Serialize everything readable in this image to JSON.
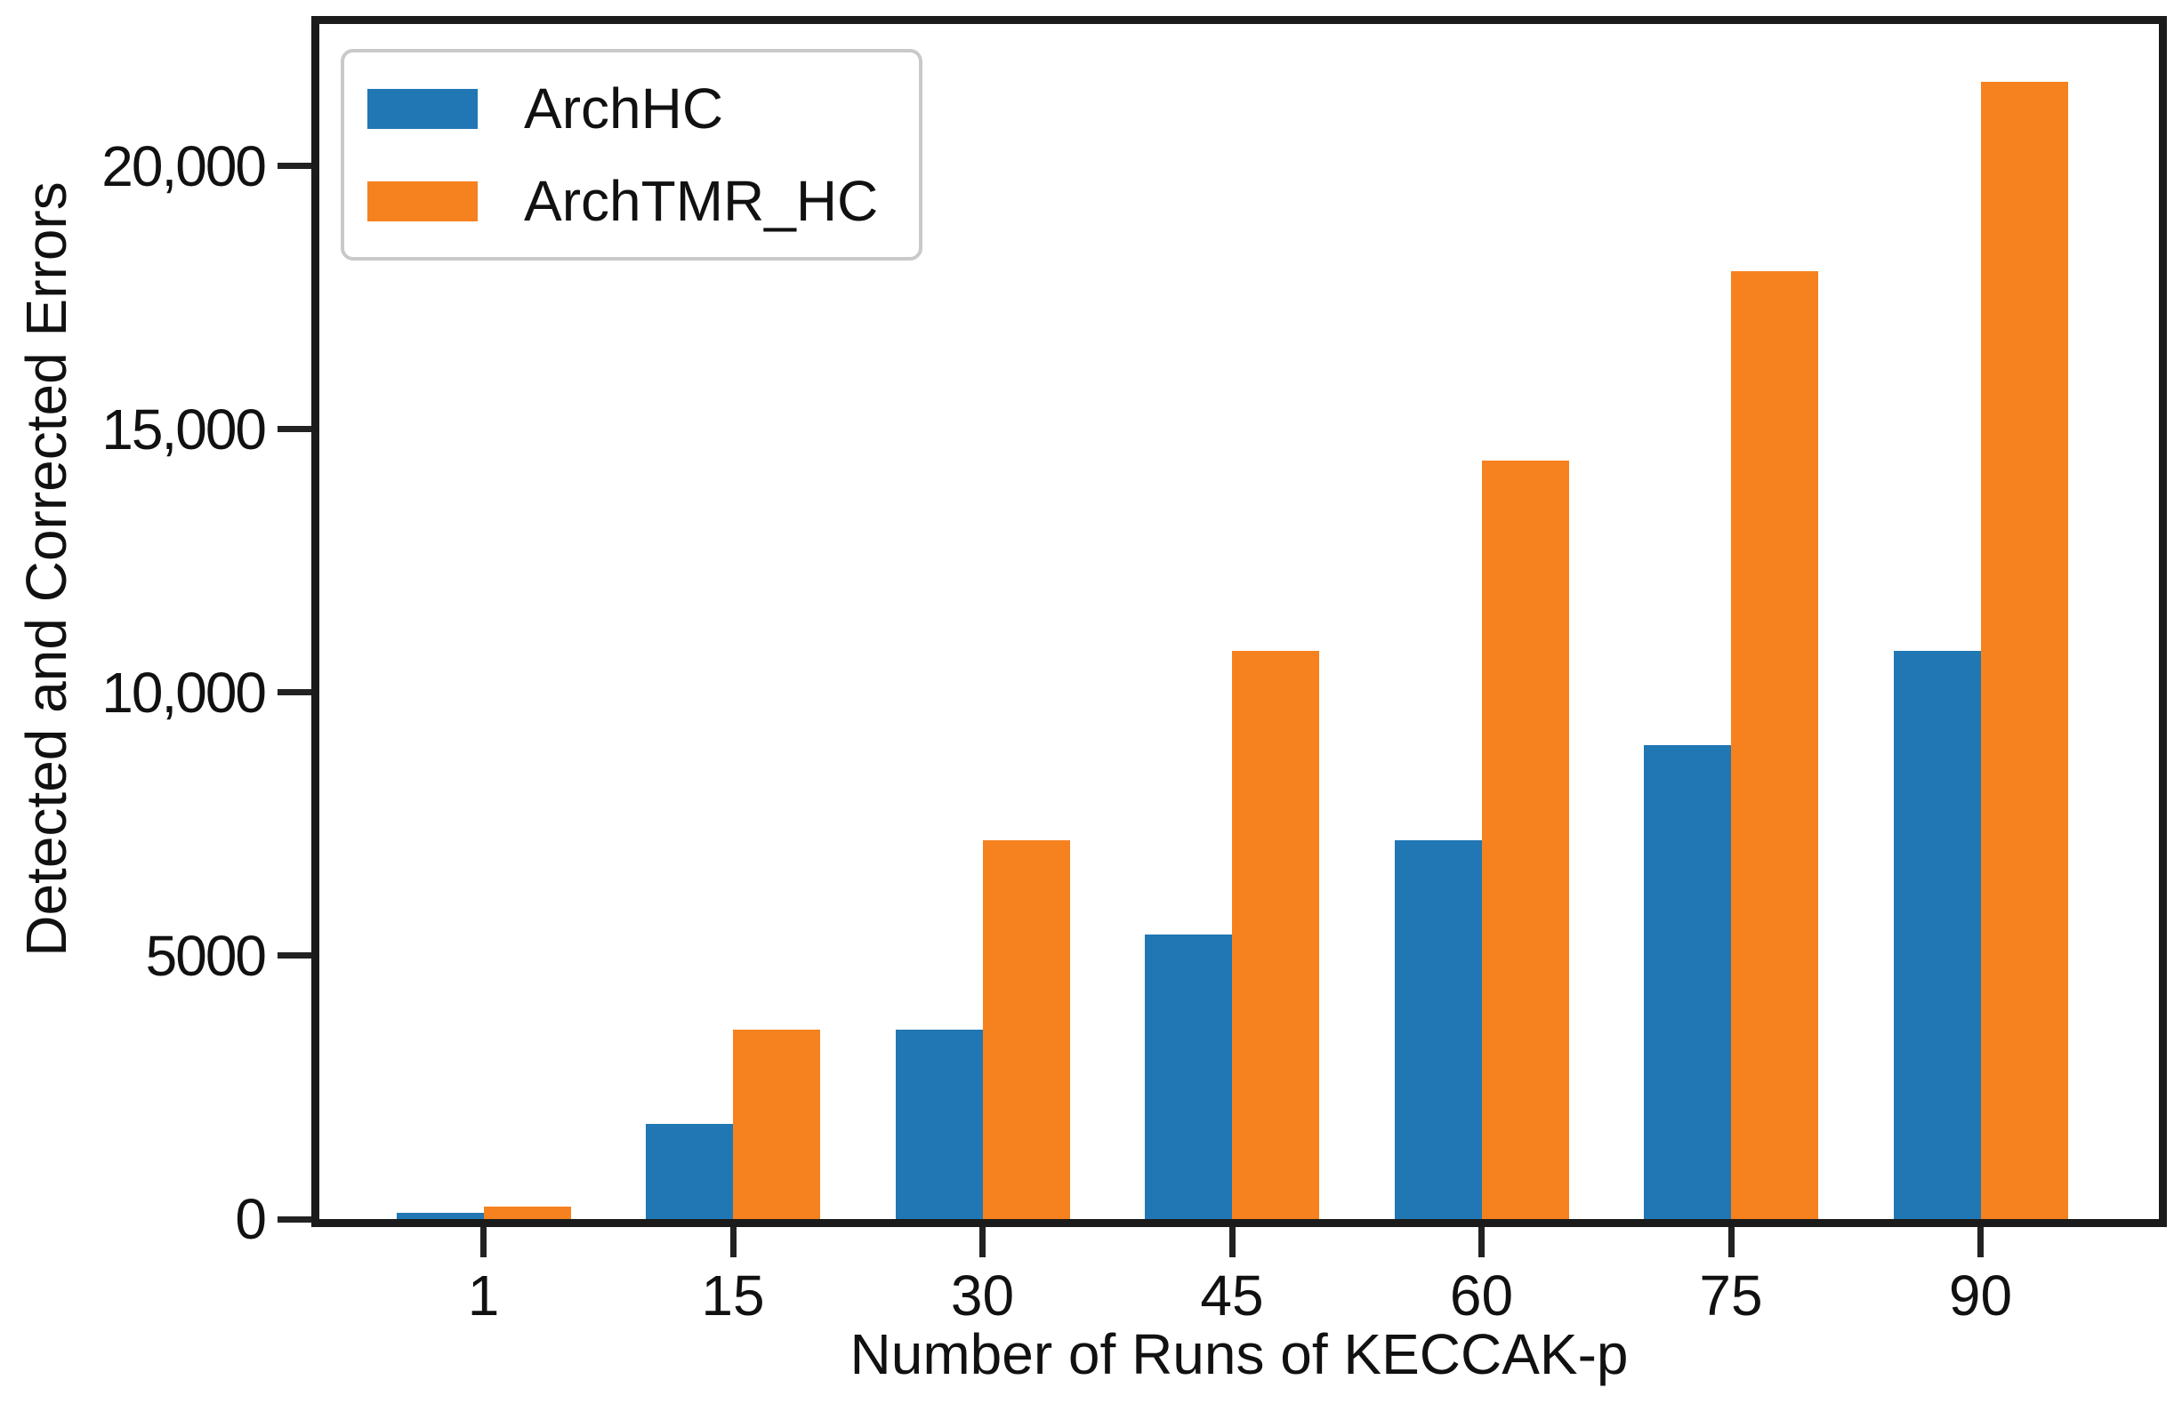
{
  "chart_data": {
    "type": "bar",
    "title": "",
    "xlabel": "Number of Runs of KECCAK-p",
    "ylabel": "Detected and Corrected Errors",
    "categories": [
      "1",
      "15",
      "30",
      "45",
      "60",
      "75",
      "90"
    ],
    "series": [
      {
        "name": "ArchHC",
        "color": "#2077b4",
        "values": [
          120,
          1800,
          3600,
          5400,
          7200,
          9000,
          10800
        ]
      },
      {
        "name": "ArchTMR_HC",
        "color": "#f5821f",
        "values": [
          240,
          3600,
          7200,
          10800,
          14400,
          18000,
          21600
        ]
      }
    ],
    "ylim": [
      0,
      22700
    ],
    "yticks": [
      {
        "value": 0,
        "label": "0"
      },
      {
        "value": 5000,
        "label": "5000"
      },
      {
        "value": 10000,
        "label": "10,000"
      },
      {
        "value": 15000,
        "label": "15,000"
      },
      {
        "value": 20000,
        "label": "20,000"
      }
    ],
    "grid": false,
    "legend_position": "upper-left",
    "frame_color": "#1b1b1b",
    "background_color": "#ffffff"
  }
}
